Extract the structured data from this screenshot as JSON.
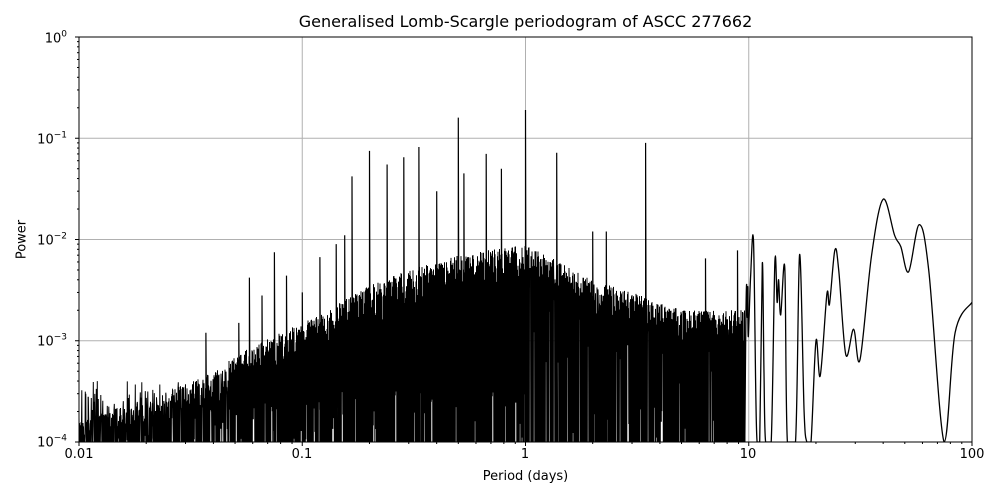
{
  "chart_data": {
    "type": "line",
    "title": "Generalised Lomb-Scargle periodogram of ASCC 277662",
    "xlabel": "Period (days)",
    "ylabel": "Power",
    "xscale": "log",
    "yscale": "log",
    "xlim": [
      0.01,
      100
    ],
    "ylim": [
      0.0001,
      1
    ],
    "grid": true,
    "line_color": "#000000",
    "grid_color": "#b0b0b0",
    "xticks": [
      {
        "value": 0.01,
        "label": "0.01"
      },
      {
        "value": 0.1,
        "label": "0.1"
      },
      {
        "value": 1,
        "label": "1"
      },
      {
        "value": 10,
        "label": "10"
      },
      {
        "value": 100,
        "label": "100"
      }
    ],
    "yticks": [
      {
        "value": 1,
        "base": "10",
        "exp": "0"
      },
      {
        "value": 0.1,
        "base": "10",
        "exp": "−1"
      },
      {
        "value": 0.01,
        "base": "10",
        "exp": "−2"
      },
      {
        "value": 0.001,
        "base": "10",
        "exp": "−3"
      },
      {
        "value": 0.0001,
        "base": "10",
        "exp": "−4"
      }
    ],
    "noise_envelope": {
      "description": "Dense forest of periodogram peaks; approximate upper envelope (period, power)",
      "points": [
        [
          0.01,
          0.00018
        ],
        [
          0.02,
          0.00025
        ],
        [
          0.04,
          0.0005
        ],
        [
          0.06,
          0.0009
        ],
        [
          0.1,
          0.0015
        ],
        [
          0.2,
          0.0035
        ],
        [
          0.3,
          0.005
        ],
        [
          0.5,
          0.007
        ],
        [
          1,
          0.009
        ],
        [
          2,
          0.004
        ],
        [
          3,
          0.003
        ],
        [
          5,
          0.002
        ]
      ]
    },
    "peaks": [
      {
        "period": 0.011,
        "power": 0.00028
      },
      {
        "period": 0.028,
        "power": 0.00035
      },
      {
        "period": 0.037,
        "power": 0.0012
      },
      {
        "period": 0.052,
        "power": 0.0015
      },
      {
        "period": 0.058,
        "power": 0.0042
      },
      {
        "period": 0.066,
        "power": 0.0028
      },
      {
        "period": 0.075,
        "power": 0.0075
      },
      {
        "period": 0.085,
        "power": 0.0044
      },
      {
        "period": 0.1,
        "power": 0.003
      },
      {
        "period": 0.12,
        "power": 0.0067
      },
      {
        "period": 0.142,
        "power": 0.009
      },
      {
        "period": 0.155,
        "power": 0.011
      },
      {
        "period": 0.167,
        "power": 0.042
      },
      {
        "period": 0.2,
        "power": 0.075
      },
      {
        "period": 0.24,
        "power": 0.055
      },
      {
        "period": 0.285,
        "power": 0.065
      },
      {
        "period": 0.333,
        "power": 0.082
      },
      {
        "period": 0.4,
        "power": 0.03
      },
      {
        "period": 0.5,
        "power": 0.16
      },
      {
        "period": 0.53,
        "power": 0.045
      },
      {
        "period": 0.667,
        "power": 0.07
      },
      {
        "period": 0.78,
        "power": 0.05
      },
      {
        "period": 1.0,
        "power": 0.19
      },
      {
        "period": 1.38,
        "power": 0.072
      },
      {
        "period": 2.0,
        "power": 0.012
      },
      {
        "period": 2.3,
        "power": 0.012
      },
      {
        "period": 3.45,
        "power": 0.09
      },
      {
        "period": 6.4,
        "power": 0.0065
      },
      {
        "period": 8.9,
        "power": 0.0078
      }
    ],
    "smooth_curve": [
      [
        9.6,
        0.0001
      ],
      [
        9.7,
        0.0014
      ],
      [
        9.78,
        0.0036
      ],
      [
        9.85,
        0.0017
      ],
      [
        9.9,
        0.0034
      ],
      [
        9.95,
        0.0011
      ],
      [
        10.2,
        0.0045
      ],
      [
        10.5,
        0.0098
      ],
      [
        10.75,
        0.0003
      ],
      [
        10.9,
        0.0001
      ],
      [
        11.2,
        0.0001
      ],
      [
        11.5,
        0.0058
      ],
      [
        11.7,
        0.00048
      ],
      [
        11.9,
        0.0001
      ],
      [
        12.6,
        0.0001
      ],
      [
        13.1,
        0.0061
      ],
      [
        13.4,
        0.0024
      ],
      [
        13.6,
        0.004
      ],
      [
        13.9,
        0.0018
      ],
      [
        14.5,
        0.0052
      ],
      [
        14.9,
        0.0001
      ],
      [
        16.2,
        0.0001
      ],
      [
        16.9,
        0.0071
      ],
      [
        17.7,
        0.0002
      ],
      [
        18.2,
        0.0001
      ],
      [
        19.0,
        0.0001
      ],
      [
        20.0,
        0.001
      ],
      [
        20.9,
        0.00045
      ],
      [
        22.4,
        0.0029
      ],
      [
        23.0,
        0.0023
      ],
      [
        24.3,
        0.0078
      ],
      [
        25.3,
        0.005
      ],
      [
        27.2,
        0.00073
      ],
      [
        29.5,
        0.0013
      ],
      [
        31.5,
        0.00065
      ],
      [
        35.5,
        0.007
      ],
      [
        40.0,
        0.025
      ],
      [
        45.0,
        0.011
      ],
      [
        48.0,
        0.0085
      ],
      [
        52.0,
        0.0048
      ],
      [
        58.0,
        0.014
      ],
      [
        64.0,
        0.005
      ],
      [
        75.0,
        0.0001
      ],
      [
        84.0,
        0.0012
      ],
      [
        100.0,
        0.0024
      ]
    ]
  }
}
